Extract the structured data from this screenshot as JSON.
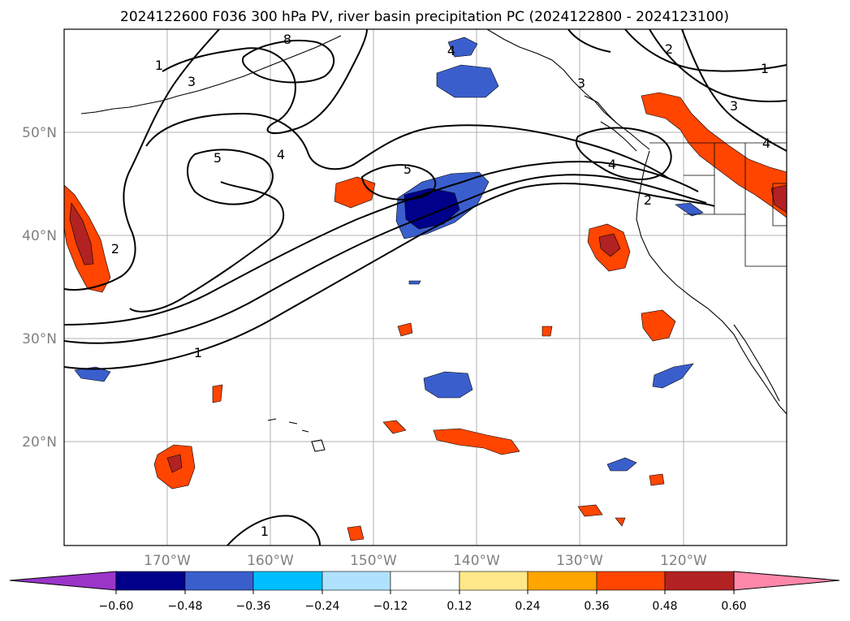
{
  "title": "2024122600 F036 300 hPa PV, river basin precipitation PC (2024122800 - 2024123100)",
  "map": {
    "lat_labels": [
      "50°N",
      "40°N",
      "30°N",
      "20°N"
    ],
    "lon_labels": [
      "170°W",
      "160°W",
      "150°W",
      "140°W",
      "130°W",
      "120°W"
    ],
    "contour_color": "#000000",
    "coastline_color": "#000000",
    "gridline_color": "#b0b0b0"
  },
  "pv_contour_labels": [
    "1",
    "3",
    "5",
    "4",
    "5",
    "4",
    "3",
    "2",
    "1",
    "3",
    "4",
    "4",
    "2",
    "2",
    "1",
    "1",
    "8"
  ],
  "colorbar": {
    "tick_labels": [
      "−0.60",
      "−0.48",
      "−0.36",
      "−0.24",
      "−0.12",
      "0.12",
      "0.24",
      "0.36",
      "0.48",
      "0.60"
    ],
    "colors": [
      "#9a35c9",
      "#00008b",
      "#3a5fcd",
      "#00bfff",
      "#b0e2ff",
      "#ffffff",
      "#ffe88a",
      "#ffa500",
      "#ff4500",
      "#b22222",
      "#ff88aa"
    ]
  }
}
